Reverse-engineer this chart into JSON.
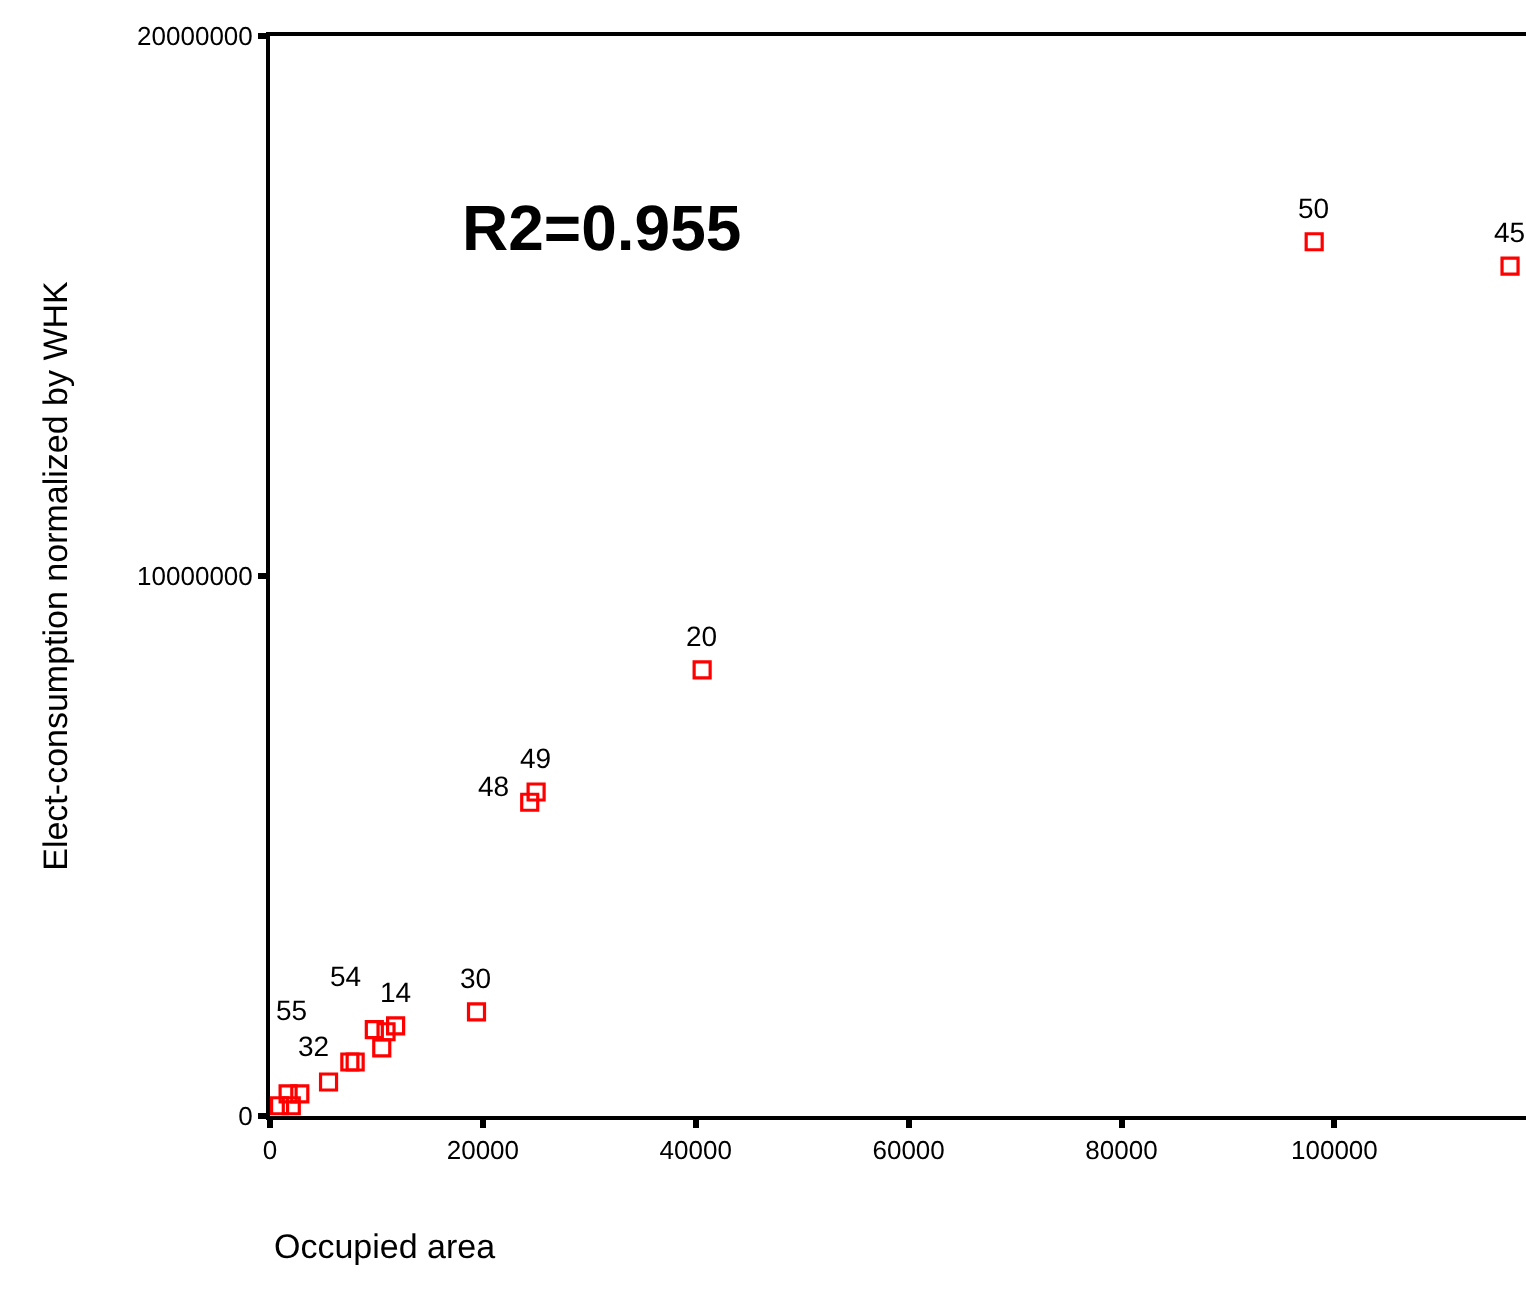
{
  "chart_data": {
    "type": "scatter",
    "xlabel": "Occupied area",
    "ylabel": "Elect-consumption normalized by WHK",
    "x": [
      98100,
      116500,
      40600,
      25000,
      24400,
      19400,
      11800,
      10900,
      10500,
      9800,
      8000,
      7500,
      5500,
      2800,
      1700,
      2000,
      900
    ],
    "series": [
      {
        "color": "#ff0000",
        "values": [
          16190000,
          15740000,
          8260000,
          6000000,
          5810000,
          1930000,
          1670000,
          1560000,
          1260000,
          1600000,
          1000000,
          1000000,
          630000,
          410000,
          410000,
          190000,
          190000
        ]
      }
    ],
    "marker": "square",
    "xlim": [
      0,
      118000
    ],
    "xticks": [
      0,
      20000,
      40000,
      60000,
      80000,
      100000
    ],
    "ylim": [
      0,
      20000000
    ],
    "yticks": [
      0,
      10000000,
      20000000
    ],
    "annotations": [
      {
        "text": "50",
        "x": 98100,
        "y": 16190000
      },
      {
        "text": "45",
        "x": 116500,
        "y": 15740000
      },
      {
        "text": "20",
        "x": 40600,
        "y": 8260000
      },
      {
        "text": "49",
        "x": 25000,
        "y": 6000000
      },
      {
        "text": "48",
        "x": 24400,
        "y": 5810000
      },
      {
        "text": "30",
        "x": 19400,
        "y": 1930000
      },
      {
        "text": "14",
        "x": 11800,
        "y": 1670000
      },
      {
        "text": "54",
        "x": 10500,
        "y": 1260000
      },
      {
        "text": "32",
        "x": 7500,
        "y": 1000000
      },
      {
        "text": "55",
        "x": 5500,
        "y": 630000
      },
      "R2=0.955"
    ]
  }
}
